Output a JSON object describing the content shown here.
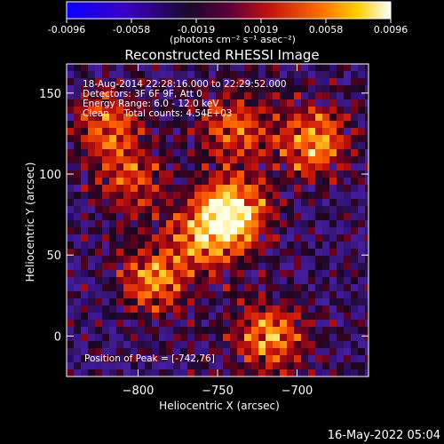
{
  "chart_data": {
    "type": "heatmap",
    "title": "Reconstructed RHESSI Image",
    "xlabel": "Heliocentric X (arcsec)",
    "ylabel": "Heliocentric Y (arcsec)",
    "xlim": [
      -845,
      -655
    ],
    "ylim": [
      -25,
      168
    ],
    "x_ticks": [
      -800,
      -750,
      -700
    ],
    "y_ticks": [
      0,
      50,
      100,
      150
    ],
    "colorbar": {
      "range": [
        -0.0096,
        0.0096
      ],
      "ticks": [
        "-0.0096",
        "-0.0058",
        "-0.0019",
        "0.0019",
        "0.0058",
        "0.0096"
      ],
      "unit_label": "(photons cm⁻² s⁻¹ asec⁻²)",
      "colormap": "RHESSI blue-purple-red-yellow-white"
    },
    "annotations": [
      "18-Aug-2014 22:28:16.000 to 22:29:52.000",
      "Detectors: 3F 6F 9F, Att 0",
      "Energy Range: 6.0 - 12.0 keV",
      "Clean     Total counts: 4.54E+03"
    ],
    "peak_label": "Position of Peak = [-742,76]",
    "peak": {
      "x": -742,
      "y": 76
    },
    "sources": [
      {
        "x": -742,
        "y": 76,
        "intensity": 1.0
      },
      {
        "x": -690,
        "y": 120,
        "intensity": 0.75
      },
      {
        "x": -820,
        "y": 130,
        "intensity": 0.6
      },
      {
        "x": -740,
        "y": 130,
        "intensity": 0.55
      },
      {
        "x": -790,
        "y": 35,
        "intensity": 0.65
      },
      {
        "x": -718,
        "y": 0,
        "intensity": 0.7
      },
      {
        "x": -760,
        "y": 60,
        "intensity": 0.5
      },
      {
        "x": -805,
        "y": 95,
        "intensity": 0.45
      }
    ]
  },
  "footer": {
    "timestamp": "16-May-2022 05:04"
  }
}
